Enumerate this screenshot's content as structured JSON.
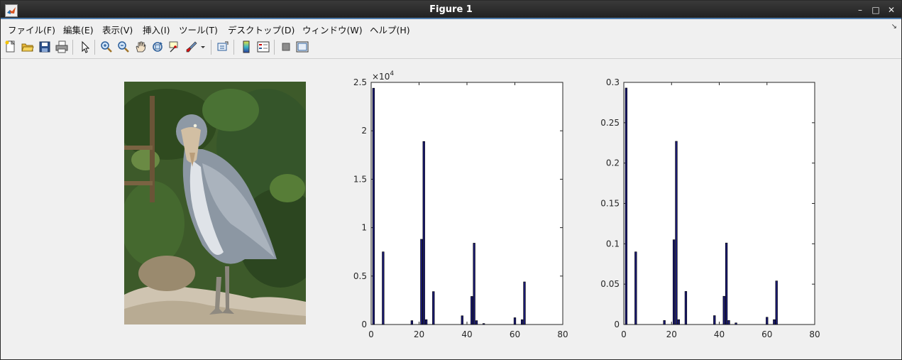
{
  "window": {
    "title": "Figure 1",
    "controls": {
      "minimize": "–",
      "maximize": "□",
      "close": "✕"
    }
  },
  "menubar": {
    "items": [
      {
        "label": "ファイル(F)"
      },
      {
        "label": "編集(E)"
      },
      {
        "label": "表示(V)"
      },
      {
        "label": "挿入(I)"
      },
      {
        "label": "ツール(T)"
      },
      {
        "label": "デスクトップ(D)"
      },
      {
        "label": "ウィンドウ(W)"
      },
      {
        "label": "ヘルプ(H)"
      }
    ],
    "dock_arrow": "↘"
  },
  "toolbar": {
    "icons": [
      "new-figure-icon",
      "open-file-icon",
      "save-icon",
      "print-icon",
      "select-arrow-icon",
      "zoom-in-icon",
      "zoom-out-icon",
      "pan-hand-icon",
      "rotate-3d-icon",
      "data-cursor-icon",
      "brush-icon",
      "link-plot-icon",
      "colorbar-icon",
      "legend-icon",
      "hide-plot-tools-icon",
      "show-plot-tools-icon"
    ]
  },
  "image": {
    "subject": "shoebill stork standing on rock in front of foliage"
  },
  "chart_data": [
    {
      "type": "bar",
      "title": "",
      "xlabel": "",
      "ylabel": "",
      "xlim": [
        0,
        80
      ],
      "ylim": [
        0,
        25000
      ],
      "exponent_label": "×10",
      "exponent_power": "4",
      "x_ticks": [
        "0",
        "20",
        "40",
        "60",
        "80"
      ],
      "y_ticks": [
        "0",
        "0.5",
        "1",
        "1.5",
        "2",
        "2.5"
      ],
      "bar_color": "#191970",
      "x": [
        1,
        5,
        17,
        21,
        22,
        23,
        26,
        38,
        42,
        43,
        44,
        47,
        60,
        63,
        64
      ],
      "values": [
        24400,
        7500,
        400,
        8800,
        18900,
        500,
        3400,
        900,
        2900,
        8400,
        400,
        100,
        700,
        500,
        4400
      ]
    },
    {
      "type": "bar",
      "title": "",
      "xlabel": "",
      "ylabel": "",
      "xlim": [
        0,
        80
      ],
      "ylim": [
        0,
        0.3
      ],
      "x_ticks": [
        "0",
        "20",
        "40",
        "60",
        "80"
      ],
      "y_ticks": [
        "0",
        "0.05",
        "0.1",
        "0.15",
        "0.2",
        "0.25",
        "0.3"
      ],
      "bar_color": "#191970",
      "x": [
        1,
        5,
        17,
        21,
        22,
        23,
        26,
        38,
        42,
        43,
        44,
        47,
        60,
        63,
        64
      ],
      "values": [
        0.293,
        0.09,
        0.005,
        0.105,
        0.227,
        0.006,
        0.041,
        0.011,
        0.035,
        0.101,
        0.005,
        0.002,
        0.009,
        0.006,
        0.054
      ]
    }
  ]
}
